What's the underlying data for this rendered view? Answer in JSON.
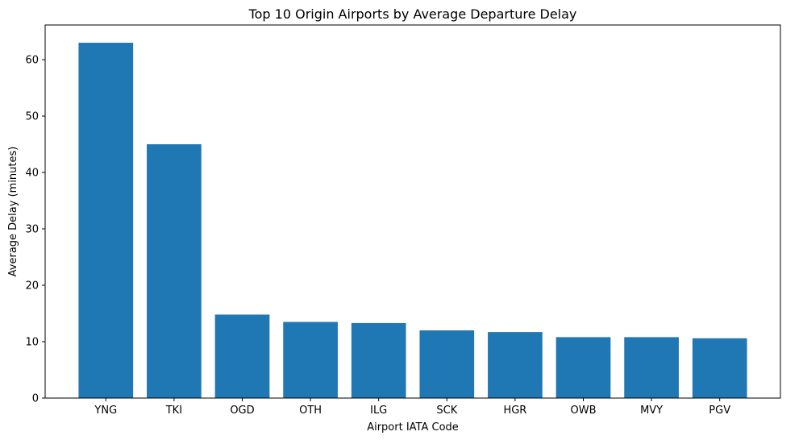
{
  "chart_data": {
    "type": "bar",
    "title": "Top 10 Origin Airports by Average Departure Delay",
    "xlabel": "Airport IATA Code",
    "ylabel": "Average Delay (minutes)",
    "categories": [
      "YNG",
      "TKI",
      "OGD",
      "OTH",
      "ILG",
      "SCK",
      "HGR",
      "OWB",
      "MVY",
      "PGV"
    ],
    "values": [
      63.0,
      45.0,
      14.8,
      13.5,
      13.3,
      12.0,
      11.7,
      10.8,
      10.8,
      10.6
    ],
    "ylim": [
      0,
      66.15
    ],
    "yticks": [
      0,
      10,
      20,
      30,
      40,
      50,
      60
    ],
    "ytick_labels": [
      "0",
      "10",
      "20",
      "30",
      "40",
      "50",
      "60"
    ],
    "bar_color": "#1f77b4",
    "grid": false,
    "legend": "none"
  }
}
